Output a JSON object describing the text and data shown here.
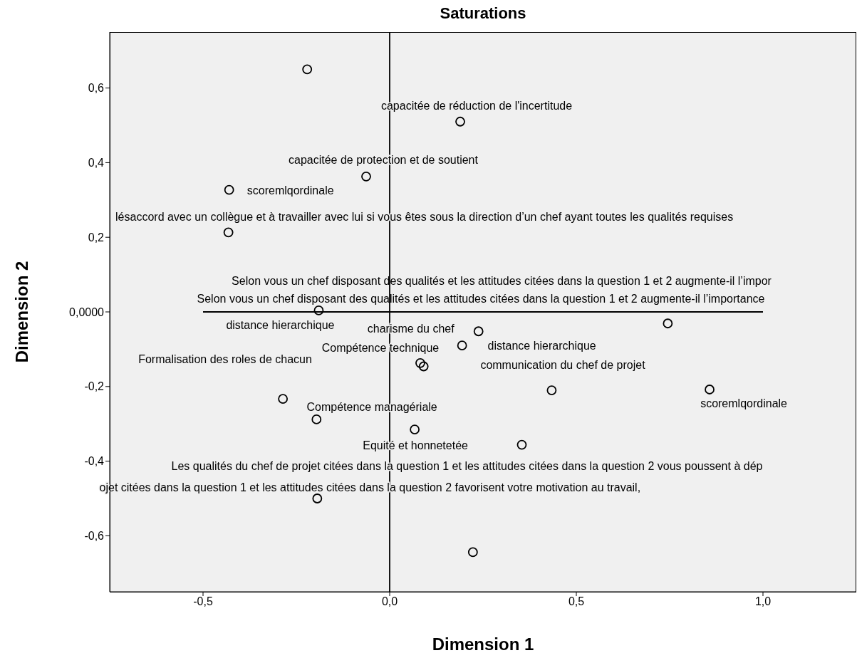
{
  "chart_data": {
    "type": "scatter",
    "title": "Saturations",
    "xlabel": "Dimension 1",
    "ylabel": "Dimension 2",
    "xlim": [
      -0.75,
      1.25
    ],
    "ylim": [
      -0.75,
      0.75
    ],
    "xticks": [
      {
        "value": -0.5,
        "label": "-0,5"
      },
      {
        "value": 0,
        "label": "0,0"
      },
      {
        "value": 0.5,
        "label": "0,5"
      },
      {
        "value": 1,
        "label": "1,0"
      }
    ],
    "yticks": [
      {
        "value": -0.6,
        "label": "-0,6"
      },
      {
        "value": -0.4,
        "label": "-0,4"
      },
      {
        "value": -0.2,
        "label": "-0,2"
      },
      {
        "value": 0,
        "label": "0,0000"
      },
      {
        "value": 0.2,
        "label": "0,2"
      },
      {
        "value": 0.4,
        "label": "0,4"
      },
      {
        "value": 0.6,
        "label": "0,6"
      }
    ],
    "marker": "circle",
    "series": [
      {
        "type": "scatter",
        "color": "#000000",
        "x": [
          -0.221,
          0.189,
          -0.063,
          -0.43,
          -0.432,
          -0.19,
          0.238,
          0.194,
          0.745,
          0.082,
          0.091,
          0.434,
          0.857,
          -0.286,
          -0.196,
          0.067,
          0.354,
          -0.194,
          0.223
        ],
        "values": [
          0.65,
          0.51,
          0.363,
          0.327,
          0.213,
          0.004,
          -0.052,
          -0.09,
          -0.031,
          -0.137,
          -0.146,
          -0.21,
          -0.208,
          -0.233,
          -0.288,
          -0.315,
          -0.356,
          -0.5,
          -0.644
        ]
      },
      {
        "type": "line",
        "color": "#000000",
        "marker": "none",
        "x": [
          -0.5,
          1.0
        ],
        "values": [
          0,
          0
        ]
      }
    ],
    "ref_lines": [
      {
        "axis": "x",
        "value": 0,
        "color": "#000000"
      }
    ],
    "annotations": [
      {
        "text": "capacitée de réduction de l'incertitude",
        "x": 0.189,
        "y": 0.51
      },
      {
        "text": "capacitée de protection et de soutient",
        "x": -0.063,
        "y": 0.363
      },
      {
        "text": "scoremlqordinale",
        "x": -0.43,
        "y": 0.327
      },
      {
        "text": "lésaccord avec un collègue et à travailler avec lui si vous êtes sous la direction d’un  chef  ayant toutes les qualités requises",
        "x": -0.432,
        "y": 0.213
      },
      "Selon vous un chef disposant des qualités et les attitudes citées dans la question 1 et 2 augmente-il l’impor",
      "Selon vous un chef disposant des qualités et les attitudes citées dans la question 1 et 2 augmente-il l’importance",
      {
        "text": "distance hierarchique",
        "x": -0.19,
        "y": 0.004
      },
      {
        "text": "charisme du chef",
        "x": 0.238,
        "y": -0.052
      },
      {
        "text": "Compétence technique",
        "x": 0.082,
        "y": -0.137
      },
      {
        "text": "distance hierarchique",
        "x": 0.194,
        "y": -0.09
      },
      "Formalisation des roles de chacun",
      "communication du chef de projet",
      {
        "text": "scoremlqordinale",
        "x": 0.857,
        "y": -0.208
      },
      {
        "text": "Compétence managériale",
        "x": -0.286,
        "y": -0.233
      },
      {
        "text": "Equité et honnetetée",
        "x": 0.067,
        "y": -0.315
      },
      {
        "text": "Les qualités du chef de projet citées dans la question 1 et les attitudes citées dans la question 2 vous poussent à  dép",
        "x": 0.354,
        "y": -0.356
      },
      {
        "text": "ojet citées dans la question 1 et les attitudes citées dans la question 2 favorisent  votre motivation  au travail,",
        "x": -0.194,
        "y": -0.5
      }
    ]
  }
}
